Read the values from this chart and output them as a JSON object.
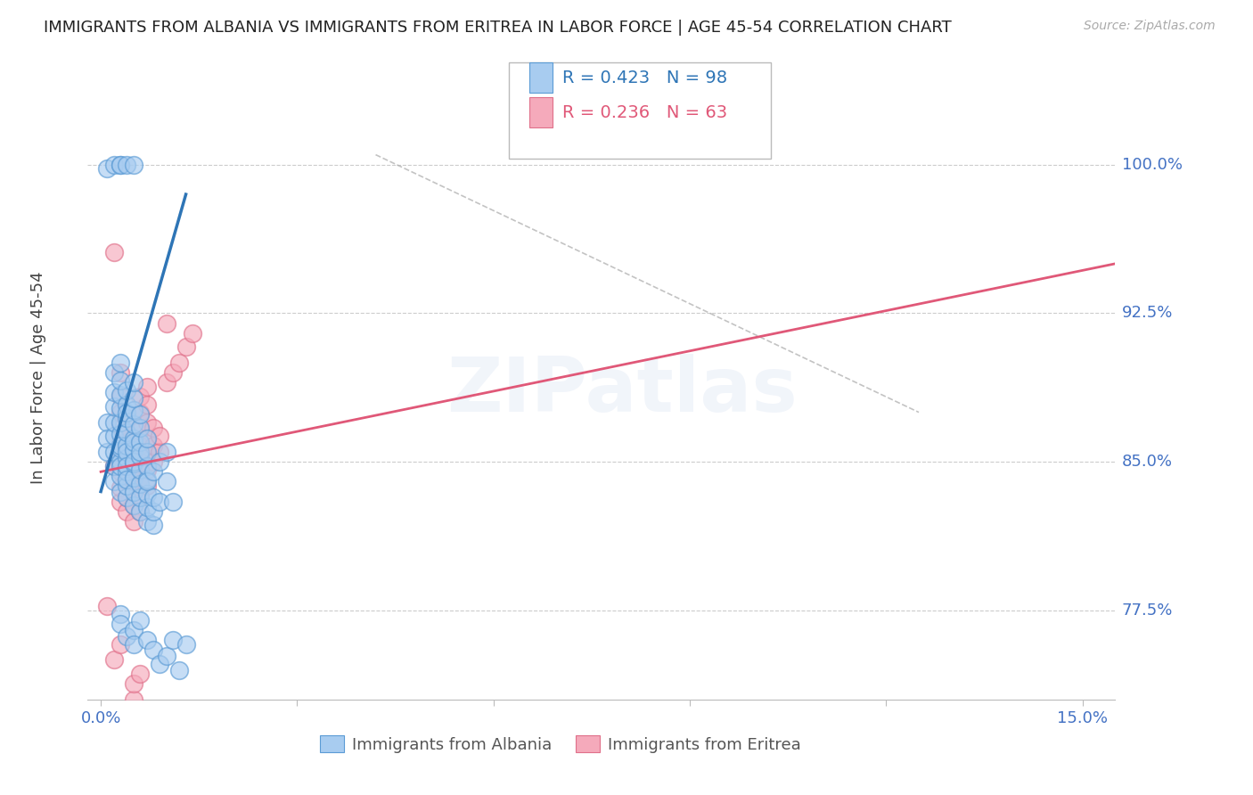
{
  "title": "IMMIGRANTS FROM ALBANIA VS IMMIGRANTS FROM ERITREA IN LABOR FORCE | AGE 45-54 CORRELATION CHART",
  "source": "Source: ZipAtlas.com",
  "ylabel": "In Labor Force | Age 45-54",
  "y_ticks": [
    0.775,
    0.85,
    0.925,
    1.0
  ],
  "y_tick_labels": [
    "77.5%",
    "85.0%",
    "92.5%",
    "100.0%"
  ],
  "xlim": [
    -0.002,
    0.155
  ],
  "ylim": [
    0.73,
    1.055
  ],
  "albania_R": 0.423,
  "albania_N": 98,
  "eritrea_R": 0.236,
  "eritrea_N": 63,
  "albania_color": "#A8CCF0",
  "eritrea_color": "#F5AABB",
  "albania_edge_color": "#5B9BD5",
  "eritrea_edge_color": "#E0708A",
  "albania_line_color": "#2E75B6",
  "eritrea_line_color": "#E05878",
  "watermark_text": "ZIPatlas",
  "watermark_color": "#4472C4",
  "background_color": "#ffffff",
  "grid_color": "#cccccc",
  "title_color": "#222222",
  "axis_label_color": "#4472C4",
  "legend_box_color": "#dddddd",
  "albania_scatter": [
    [
      0.001,
      0.855
    ],
    [
      0.001,
      0.87
    ],
    [
      0.001,
      0.862
    ],
    [
      0.002,
      0.84
    ],
    [
      0.002,
      0.848
    ],
    [
      0.002,
      0.855
    ],
    [
      0.002,
      0.863
    ],
    [
      0.002,
      0.87
    ],
    [
      0.002,
      0.878
    ],
    [
      0.002,
      0.885
    ],
    [
      0.002,
      0.895
    ],
    [
      0.003,
      0.835
    ],
    [
      0.003,
      0.843
    ],
    [
      0.003,
      0.85
    ],
    [
      0.003,
      0.857
    ],
    [
      0.003,
      0.864
    ],
    [
      0.003,
      0.87
    ],
    [
      0.003,
      0.877
    ],
    [
      0.003,
      0.884
    ],
    [
      0.003,
      0.891
    ],
    [
      0.003,
      0.9
    ],
    [
      0.003,
      0.858
    ],
    [
      0.003,
      0.848
    ],
    [
      0.004,
      0.832
    ],
    [
      0.004,
      0.838
    ],
    [
      0.004,
      0.845
    ],
    [
      0.004,
      0.852
    ],
    [
      0.004,
      0.858
    ],
    [
      0.004,
      0.865
    ],
    [
      0.004,
      0.872
    ],
    [
      0.004,
      0.879
    ],
    [
      0.004,
      0.886
    ],
    [
      0.004,
      0.855
    ],
    [
      0.004,
      0.848
    ],
    [
      0.004,
      0.841
    ],
    [
      0.004,
      0.875
    ],
    [
      0.005,
      0.828
    ],
    [
      0.005,
      0.835
    ],
    [
      0.005,
      0.842
    ],
    [
      0.005,
      0.849
    ],
    [
      0.005,
      0.856
    ],
    [
      0.005,
      0.862
    ],
    [
      0.005,
      0.869
    ],
    [
      0.005,
      0.876
    ],
    [
      0.005,
      0.882
    ],
    [
      0.005,
      0.89
    ],
    [
      0.005,
      0.86
    ],
    [
      0.005,
      0.85
    ],
    [
      0.006,
      0.825
    ],
    [
      0.006,
      0.832
    ],
    [
      0.006,
      0.839
    ],
    [
      0.006,
      0.846
    ],
    [
      0.006,
      0.853
    ],
    [
      0.006,
      0.86
    ],
    [
      0.006,
      0.867
    ],
    [
      0.006,
      0.874
    ],
    [
      0.006,
      0.855
    ],
    [
      0.007,
      0.82
    ],
    [
      0.007,
      0.827
    ],
    [
      0.007,
      0.834
    ],
    [
      0.007,
      0.841
    ],
    [
      0.007,
      0.848
    ],
    [
      0.007,
      0.855
    ],
    [
      0.007,
      0.862
    ],
    [
      0.007,
      0.84
    ],
    [
      0.008,
      0.818
    ],
    [
      0.008,
      0.825
    ],
    [
      0.008,
      0.832
    ],
    [
      0.008,
      0.845
    ],
    [
      0.009,
      0.83
    ],
    [
      0.009,
      0.85
    ],
    [
      0.01,
      0.855
    ],
    [
      0.01,
      0.84
    ],
    [
      0.011,
      0.83
    ],
    [
      0.001,
      0.998
    ],
    [
      0.002,
      1.0
    ],
    [
      0.003,
      1.0
    ],
    [
      0.003,
      1.0
    ],
    [
      0.004,
      1.0
    ],
    [
      0.005,
      1.0
    ],
    [
      0.003,
      0.773
    ],
    [
      0.003,
      0.768
    ],
    [
      0.004,
      0.762
    ],
    [
      0.005,
      0.765
    ],
    [
      0.005,
      0.758
    ],
    [
      0.006,
      0.77
    ],
    [
      0.007,
      0.76
    ],
    [
      0.008,
      0.755
    ],
    [
      0.009,
      0.748
    ],
    [
      0.01,
      0.752
    ],
    [
      0.011,
      0.76
    ],
    [
      0.012,
      0.745
    ],
    [
      0.013,
      0.758
    ]
  ],
  "eritrea_scatter": [
    [
      0.001,
      0.777
    ],
    [
      0.002,
      0.956
    ],
    [
      0.002,
      0.848
    ],
    [
      0.003,
      0.83
    ],
    [
      0.003,
      0.837
    ],
    [
      0.003,
      0.845
    ],
    [
      0.003,
      0.852
    ],
    [
      0.003,
      0.86
    ],
    [
      0.003,
      0.868
    ],
    [
      0.003,
      0.875
    ],
    [
      0.003,
      0.883
    ],
    [
      0.003,
      0.895
    ],
    [
      0.004,
      0.825
    ],
    [
      0.004,
      0.832
    ],
    [
      0.004,
      0.84
    ],
    [
      0.004,
      0.848
    ],
    [
      0.004,
      0.856
    ],
    [
      0.004,
      0.864
    ],
    [
      0.004,
      0.872
    ],
    [
      0.005,
      0.82
    ],
    [
      0.005,
      0.828
    ],
    [
      0.005,
      0.836
    ],
    [
      0.005,
      0.844
    ],
    [
      0.005,
      0.852
    ],
    [
      0.005,
      0.86
    ],
    [
      0.005,
      0.84
    ],
    [
      0.006,
      0.825
    ],
    [
      0.006,
      0.833
    ],
    [
      0.006,
      0.842
    ],
    [
      0.006,
      0.85
    ],
    [
      0.006,
      0.858
    ],
    [
      0.006,
      0.866
    ],
    [
      0.006,
      0.875
    ],
    [
      0.006,
      0.883
    ],
    [
      0.007,
      0.838
    ],
    [
      0.007,
      0.846
    ],
    [
      0.007,
      0.854
    ],
    [
      0.007,
      0.862
    ],
    [
      0.007,
      0.87
    ],
    [
      0.007,
      0.879
    ],
    [
      0.007,
      0.888
    ],
    [
      0.008,
      0.85
    ],
    [
      0.008,
      0.858
    ],
    [
      0.008,
      0.867
    ],
    [
      0.009,
      0.855
    ],
    [
      0.009,
      0.863
    ],
    [
      0.01,
      0.92
    ],
    [
      0.002,
      0.75
    ],
    [
      0.003,
      0.758
    ],
    [
      0.005,
      0.73
    ],
    [
      0.005,
      0.738
    ],
    [
      0.006,
      0.743
    ],
    [
      0.01,
      0.89
    ],
    [
      0.011,
      0.895
    ],
    [
      0.012,
      0.9
    ],
    [
      0.013,
      0.908
    ],
    [
      0.014,
      0.915
    ]
  ],
  "albania_line_x": [
    0.0,
    0.013
  ],
  "albania_line_y": [
    0.835,
    0.985
  ],
  "eritrea_line_x": [
    0.0,
    0.155
  ],
  "eritrea_line_y": [
    0.845,
    0.95
  ],
  "dash_line_x": [
    0.042,
    0.125
  ],
  "dash_line_y": [
    1.005,
    0.875
  ]
}
